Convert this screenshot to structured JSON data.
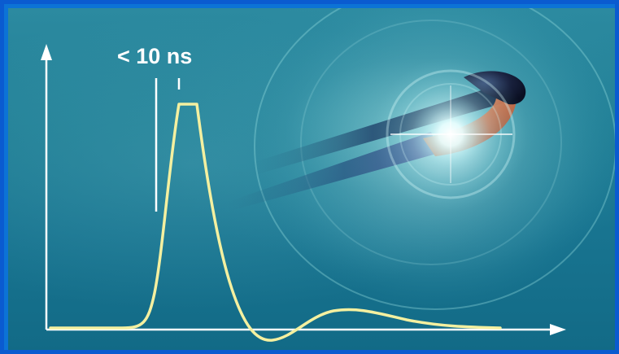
{
  "diagram": {
    "pulse_width_label": "< 10 ns"
  },
  "colors": {
    "background": "#1f7e95",
    "border": "#0a5bd0",
    "pulse_curve": "#f4f0a0",
    "axes": "#ffffff"
  },
  "icons": [
    "fiber-optic-probe-icon",
    "light-flash-icon"
  ]
}
